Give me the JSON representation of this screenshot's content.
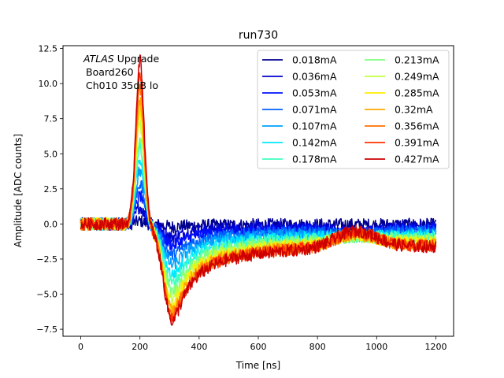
{
  "chart_data": {
    "type": "line",
    "title": "run730",
    "xlabel": "Time [ns]",
    "ylabel": "Amplitude [ADC counts]",
    "xlim": [
      -60,
      1260
    ],
    "ylim": [
      -8.0,
      12.7
    ],
    "xticks": [
      0,
      200,
      400,
      600,
      800,
      1000,
      1200
    ],
    "yticks": [
      -7.5,
      -5.0,
      -2.5,
      0.0,
      2.5,
      5.0,
      7.5,
      10.0,
      12.5
    ],
    "grid": false,
    "legend_position": "top-right",
    "legend_columns": 2,
    "annotation": {
      "italic": "ATLAS",
      "rest": " Upgrade",
      "line2": "Board260",
      "line3": "Ch010 35dB lo"
    },
    "waveform": {
      "x_start": 0,
      "x_end": 1200,
      "peak_time": 200,
      "trough_time": 310,
      "bump_time": 930
    },
    "series": [
      {
        "name": "0.018mA",
        "color": "#00008f",
        "peak": 0.2,
        "trough": -0.2,
        "bump": 0.0
      },
      {
        "name": "0.036mA",
        "color": "#0000cc",
        "peak": 1.2,
        "trough": -0.9,
        "bump": -0.4
      },
      {
        "name": "0.053mA",
        "color": "#0010ff",
        "peak": 2.0,
        "trough": -1.5,
        "bump": -0.3
      },
      {
        "name": "0.071mA",
        "color": "#0060ff",
        "peak": 2.9,
        "trough": -2.2,
        "bump": -0.2
      },
      {
        "name": "0.107mA",
        "color": "#00a0ff",
        "peak": 3.8,
        "trough": -2.9,
        "bump": -0.1
      },
      {
        "name": "0.142mA",
        "color": "#00e8ff",
        "peak": 4.7,
        "trough": -3.6,
        "bump": 0.0
      },
      {
        "name": "0.178mA",
        "color": "#40ffc0",
        "peak": 5.5,
        "trough": -4.2,
        "bump": 0.15
      },
      {
        "name": "0.213mA",
        "color": "#80ff80",
        "peak": 6.3,
        "trough": -4.8,
        "bump": 0.3
      },
      {
        "name": "0.249mA",
        "color": "#c0ff40",
        "peak": 7.1,
        "trough": -5.3,
        "bump": 0.45
      },
      {
        "name": "0.285mA",
        "color": "#ffee00",
        "peak": 7.9,
        "trough": -5.8,
        "bump": 0.6
      },
      {
        "name": "0.32mA",
        "color": "#ffa800",
        "peak": 8.8,
        "trough": -6.2,
        "bump": 0.75
      },
      {
        "name": "0.356mA",
        "color": "#ff7000",
        "peak": 9.6,
        "trough": -6.5,
        "bump": 0.9
      },
      {
        "name": "0.391mA",
        "color": "#ff3000",
        "peak": 10.6,
        "trough": -6.7,
        "bump": 1.05
      },
      {
        "name": "0.427mA",
        "color": "#cc0000",
        "peak": 11.7,
        "trough": -6.9,
        "bump": 1.2
      }
    ]
  }
}
